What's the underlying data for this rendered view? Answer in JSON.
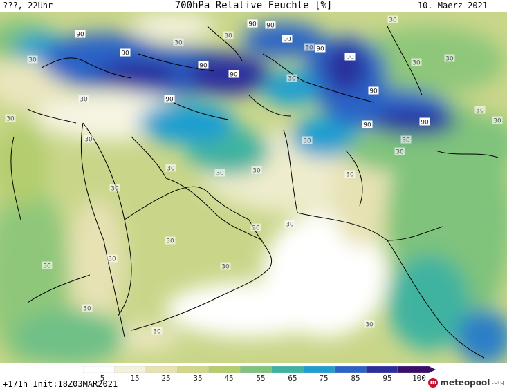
{
  "header": {
    "left": "???, 22Uhr",
    "title": "700hPa Relative Feuchte [%]",
    "date": "10. Maerz 2021"
  },
  "footer": {
    "init": "+171h Init:18Z03MAR2021",
    "brand_main": "meteopool",
    "brand_suffix": ".org"
  },
  "legend": {
    "ticks": [
      "5",
      "15",
      "25",
      "35",
      "45",
      "55",
      "65",
      "75",
      "85",
      "95",
      "100"
    ],
    "colors": [
      "#ffffff",
      "#f3f1dc",
      "#e6e2b4",
      "#d2d68a",
      "#b4cd6e",
      "#7fc37c",
      "#3fb3a0",
      "#1e9ed0",
      "#2c63c6",
      "#2a2f9c",
      "#3a0f6a"
    ]
  },
  "map_labels": [
    {
      "text": "90"
    },
    {
      "text": "90"
    },
    {
      "text": "90"
    },
    {
      "text": "90"
    },
    {
      "text": "90"
    },
    {
      "text": "90"
    },
    {
      "text": "90"
    },
    {
      "text": "90"
    },
    {
      "text": "90"
    },
    {
      "text": "90"
    },
    {
      "text": "90"
    },
    {
      "text": "90"
    },
    {
      "text": "90"
    },
    {
      "text": "30"
    },
    {
      "text": "30"
    },
    {
      "text": "30"
    },
    {
      "text": "30"
    },
    {
      "text": "30"
    },
    {
      "text": "30"
    },
    {
      "text": "30"
    },
    {
      "text": "30"
    },
    {
      "text": "30"
    },
    {
      "text": "30"
    },
    {
      "text": "30"
    },
    {
      "text": "30"
    },
    {
      "text": "30"
    },
    {
      "text": "30"
    },
    {
      "text": "30"
    },
    {
      "text": "30"
    },
    {
      "text": "30"
    },
    {
      "text": "30"
    },
    {
      "text": "30"
    },
    {
      "text": "30"
    },
    {
      "text": "30"
    },
    {
      "text": "30"
    },
    {
      "text": "30"
    },
    {
      "text": "30"
    },
    {
      "text": "30"
    },
    {
      "text": "30"
    },
    {
      "text": "30"
    },
    {
      "text": "30"
    },
    {
      "text": "30"
    },
    {
      "text": "30"
    }
  ]
}
